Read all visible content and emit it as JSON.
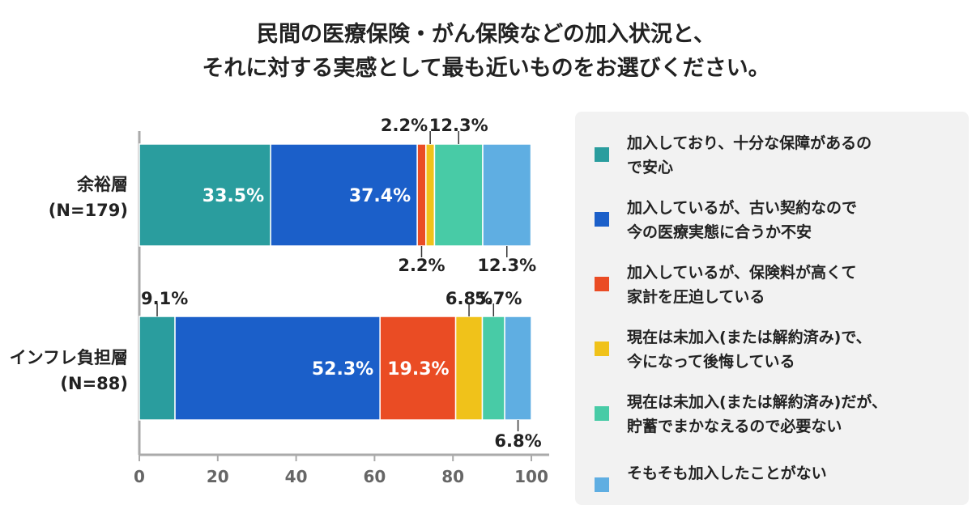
{
  "title": {
    "line1": "民間の医療保険・がん保険などの加入状況と、",
    "line2": "それに対する実感として最も近いものをお選びください。"
  },
  "chart_data": {
    "type": "bar",
    "orientation": "horizontal",
    "stacked": true,
    "categories": [
      "余裕層\n(N=179)",
      "インフレ負担層\n(N=88)"
    ],
    "series": [
      {
        "name": "加入しており、十分な保障があるので安心",
        "color": "#2a9d9e",
        "values": [
          33.5,
          9.1
        ]
      },
      {
        "name": "加入しているが、古い契約なので今の医療実態に合うか不安",
        "color": "#1b5fc9",
        "values": [
          37.4,
          52.3
        ]
      },
      {
        "name": "加入しているが、保険料が高くて家計を圧迫している",
        "color": "#ea4c24",
        "values": [
          2.2,
          19.3
        ]
      },
      {
        "name": "現在は未加入(または解約済み)で、今になって後悔している",
        "color": "#f0c21a",
        "values": [
          2.2,
          6.8
        ]
      },
      {
        "name": "現在は未加入(または解約済み)だが、貯蓄でまかなえるので必要ない",
        "color": "#48cba6",
        "values": [
          12.3,
          5.7
        ]
      },
      {
        "name": "そもそも加入したことがない",
        "color": "#5faee2",
        "values": [
          12.3,
          6.8
        ]
      }
    ],
    "value_labels": [
      [
        "33.5%",
        "37.4%",
        "2.2%",
        "2.2%",
        "12.3%",
        "12.3%"
      ],
      [
        "9.1%",
        "52.3%",
        "19.3%",
        "6.8%",
        "5.7%",
        "6.8%"
      ]
    ],
    "xlim": [
      0,
      100
    ],
    "xticks": [
      0,
      20,
      40,
      60,
      80,
      100
    ],
    "xlabel": "",
    "ylabel": "",
    "grid": false
  },
  "legend": {
    "items": [
      {
        "text": "加入しており、十分な保障があるの\nで安心",
        "color": "#2a9d9e"
      },
      {
        "text": "加入しているが、古い契約なので\n今の医療実態に合うか不安",
        "color": "#1b5fc9"
      },
      {
        "text": "加入しているが、保険料が高くて\n家計を圧迫している",
        "color": "#ea4c24"
      },
      {
        "text": "現在は未加入(または解約済み)で、\n今になって後悔している",
        "color": "#f0c21a"
      },
      {
        "text": "現在は未加入(または解約済み)だが、\n貯蓄でまかなえるので必要ない",
        "color": "#48cba6"
      },
      {
        "text": "そもそも加入したことがない",
        "color": "#5faee2"
      }
    ]
  }
}
